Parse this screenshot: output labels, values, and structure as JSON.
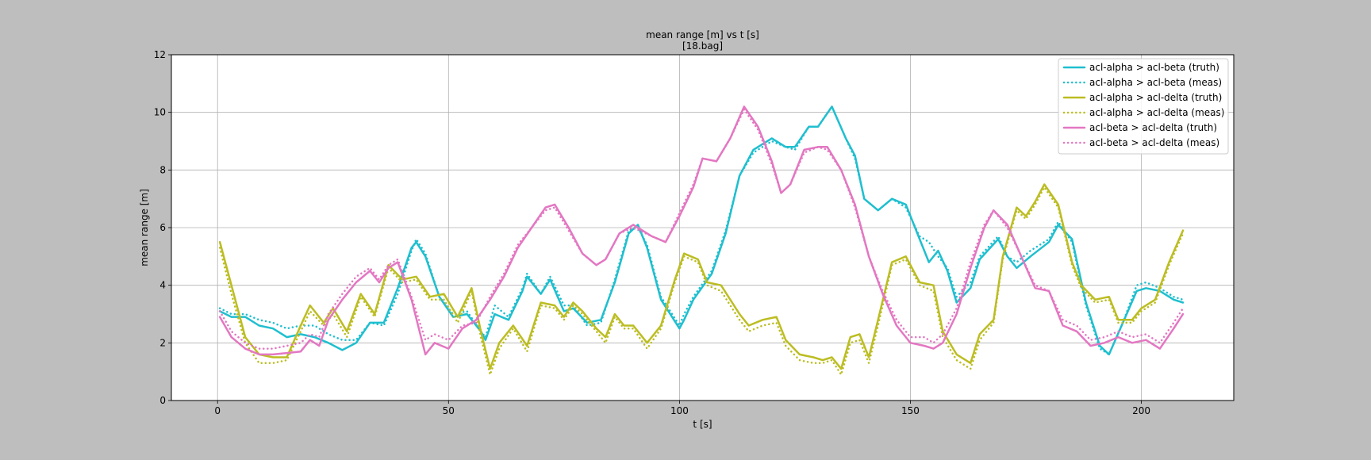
{
  "chart_data": {
    "type": "line",
    "title": "mean range [m] vs t [s]",
    "subtitle": "[18.bag]",
    "xlabel": "t [s]",
    "ylabel": "mean range [m]",
    "xlim": [
      -10,
      220
    ],
    "ylim": [
      0,
      12
    ],
    "xticks": [
      0,
      50,
      100,
      150,
      200
    ],
    "yticks": [
      0,
      2,
      4,
      6,
      8,
      10,
      12
    ],
    "grid": true,
    "legend_position": "top-right",
    "series": [
      {
        "name": "acl-alpha > acl-beta (truth)",
        "color": "#1fbfcf",
        "style": "solid",
        "x": [
          0.5,
          3,
          6,
          9,
          12,
          15,
          18,
          21,
          24,
          27,
          30,
          33,
          36,
          39,
          42,
          43,
          45,
          48,
          51,
          54,
          57,
          58,
          60,
          63,
          66,
          67,
          70,
          72,
          75,
          77,
          80,
          83,
          86,
          89,
          91,
          93,
          96,
          100,
          101,
          103,
          107,
          110,
          113,
          116,
          120,
          123,
          125,
          128,
          130,
          133,
          136,
          138,
          140,
          143,
          146,
          149,
          152,
          154,
          156,
          158,
          160,
          163,
          165,
          169,
          171,
          173,
          176,
          180,
          182,
          185,
          188,
          191,
          193,
          196,
          199,
          201,
          204,
          207,
          209
        ],
        "y": [
          3.1,
          2.9,
          2.9,
          2.6,
          2.5,
          2.2,
          2.3,
          2.2,
          2.0,
          1.75,
          2.0,
          2.7,
          2.7,
          3.9,
          5.3,
          5.5,
          5.0,
          3.6,
          2.9,
          3.0,
          2.4,
          2.1,
          3.0,
          2.8,
          3.8,
          4.3,
          3.7,
          4.2,
          3.1,
          3.2,
          2.7,
          2.8,
          4.1,
          5.8,
          6.1,
          5.3,
          3.5,
          2.5,
          2.8,
          3.5,
          4.4,
          5.8,
          7.8,
          8.7,
          9.1,
          8.8,
          8.8,
          9.5,
          9.5,
          10.2,
          9.1,
          8.5,
          7.0,
          6.6,
          7.0,
          6.8,
          5.6,
          4.8,
          5.2,
          4.5,
          3.4,
          3.9,
          4.9,
          5.6,
          5.0,
          4.6,
          5.0,
          5.5,
          6.1,
          5.6,
          3.4,
          1.9,
          1.6,
          2.7,
          3.8,
          3.9,
          3.8,
          3.5,
          3.4
        ]
      },
      {
        "name": "acl-alpha > acl-beta (meas)",
        "color": "#1fbfcf",
        "style": "dotted",
        "x": [
          0.5,
          3,
          6,
          9,
          12,
          15,
          18,
          21,
          24,
          27,
          30,
          33,
          36,
          39,
          42,
          43,
          45,
          48,
          51,
          54,
          57,
          58,
          60,
          63,
          66,
          67,
          70,
          72,
          75,
          77,
          80,
          83,
          86,
          89,
          91,
          93,
          96,
          100,
          101,
          103,
          107,
          110,
          113,
          116,
          120,
          123,
          125,
          128,
          130,
          133,
          136,
          138,
          140,
          143,
          146,
          149,
          152,
          154,
          156,
          158,
          160,
          163,
          165,
          169,
          171,
          173,
          176,
          180,
          182,
          185,
          188,
          191,
          193,
          196,
          199,
          201,
          204,
          207,
          209
        ],
        "y": [
          3.2,
          3.0,
          3.0,
          2.8,
          2.7,
          2.5,
          2.6,
          2.6,
          2.3,
          2.1,
          2.1,
          2.7,
          2.6,
          3.7,
          5.2,
          5.6,
          5.1,
          3.6,
          3.0,
          3.1,
          2.4,
          2.2,
          3.3,
          2.9,
          3.9,
          4.4,
          3.7,
          4.3,
          3.3,
          3.3,
          2.6,
          2.7,
          4.2,
          5.9,
          6.0,
          5.4,
          3.6,
          2.6,
          3.0,
          3.6,
          4.5,
          5.9,
          7.8,
          8.6,
          9.0,
          8.8,
          8.7,
          9.5,
          9.5,
          10.2,
          9.1,
          8.4,
          7.0,
          6.6,
          7.0,
          6.7,
          5.7,
          5.5,
          5.0,
          4.6,
          3.6,
          4.1,
          5.0,
          5.7,
          5.0,
          4.8,
          5.2,
          5.6,
          6.2,
          5.5,
          3.3,
          1.8,
          1.6,
          2.7,
          4.0,
          4.1,
          3.9,
          3.6,
          3.5
        ]
      },
      {
        "name": "acl-alpha > acl-delta (truth)",
        "color": "#bcbd22",
        "style": "solid",
        "x": [
          0.5,
          3,
          6,
          9,
          12,
          15,
          18,
          20,
          23,
          25,
          28,
          31,
          34,
          37,
          40,
          43,
          46,
          49,
          52,
          55,
          57,
          59,
          61,
          64,
          67,
          70,
          73,
          75,
          77,
          79,
          82,
          84,
          86,
          88,
          90,
          93,
          96,
          99,
          101,
          104,
          106,
          109,
          113,
          115,
          118,
          121,
          123,
          126,
          129,
          131,
          133,
          135,
          137,
          139,
          141,
          143,
          146,
          149,
          152,
          155,
          157,
          160,
          163,
          165,
          168,
          170,
          173,
          175,
          177,
          179,
          182,
          185,
          187,
          190,
          193,
          195,
          198,
          200,
          203,
          206,
          209
        ],
        "y": [
          5.5,
          4.0,
          2.2,
          1.6,
          1.5,
          1.5,
          2.6,
          3.3,
          2.7,
          3.2,
          2.4,
          3.7,
          3.0,
          4.7,
          4.2,
          4.3,
          3.6,
          3.7,
          2.9,
          3.9,
          2.4,
          1.1,
          2.0,
          2.6,
          1.9,
          3.4,
          3.3,
          2.9,
          3.4,
          3.1,
          2.5,
          2.2,
          3.0,
          2.6,
          2.6,
          2.0,
          2.6,
          4.2,
          5.1,
          4.9,
          4.1,
          4.0,
          3.0,
          2.6,
          2.8,
          2.9,
          2.1,
          1.6,
          1.5,
          1.4,
          1.5,
          1.1,
          2.2,
          2.3,
          1.5,
          2.8,
          4.8,
          5.0,
          4.1,
          4.0,
          2.4,
          1.6,
          1.3,
          2.3,
          2.8,
          5.0,
          6.7,
          6.4,
          6.9,
          7.5,
          6.8,
          4.8,
          4.0,
          3.5,
          3.6,
          2.8,
          2.8,
          3.2,
          3.5,
          4.8,
          5.9
        ]
      },
      {
        "name": "acl-alpha > acl-delta (meas)",
        "color": "#bcbd22",
        "style": "dotted",
        "x": [
          0.5,
          3,
          6,
          9,
          12,
          15,
          18,
          20,
          23,
          25,
          28,
          31,
          34,
          37,
          40,
          43,
          46,
          49,
          52,
          55,
          57,
          59,
          61,
          64,
          67,
          70,
          73,
          75,
          77,
          79,
          82,
          84,
          86,
          88,
          90,
          93,
          96,
          99,
          101,
          104,
          106,
          109,
          113,
          115,
          118,
          121,
          123,
          126,
          129,
          131,
          133,
          135,
          137,
          139,
          141,
          143,
          146,
          149,
          152,
          155,
          157,
          160,
          163,
          165,
          168,
          170,
          173,
          175,
          177,
          179,
          182,
          185,
          187,
          190,
          193,
          195,
          198,
          200,
          203,
          206,
          209
        ],
        "y": [
          5.3,
          3.7,
          2.0,
          1.3,
          1.3,
          1.4,
          2.4,
          3.1,
          2.6,
          3.0,
          2.2,
          3.6,
          2.9,
          4.6,
          4.1,
          4.2,
          3.5,
          3.5,
          2.7,
          3.8,
          2.2,
          0.9,
          1.8,
          2.5,
          1.7,
          3.3,
          3.2,
          2.8,
          3.3,
          3.0,
          2.4,
          2.0,
          2.9,
          2.5,
          2.5,
          1.8,
          2.5,
          4.1,
          5.0,
          4.8,
          4.0,
          3.8,
          2.8,
          2.4,
          2.6,
          2.7,
          1.9,
          1.4,
          1.3,
          1.3,
          1.4,
          0.9,
          2.0,
          2.1,
          1.3,
          2.6,
          4.7,
          4.9,
          4.0,
          3.8,
          2.2,
          1.4,
          1.1,
          2.1,
          2.7,
          4.9,
          6.6,
          6.3,
          6.8,
          7.4,
          6.7,
          4.7,
          3.9,
          3.4,
          3.5,
          2.7,
          2.7,
          3.1,
          3.4,
          4.7,
          5.8
        ]
      },
      {
        "name": "acl-beta > acl-delta (truth)",
        "color": "#e377c2",
        "style": "solid",
        "x": [
          0.5,
          3,
          6,
          9,
          12,
          15,
          18,
          20,
          22,
          24,
          27,
          30,
          33,
          35,
          37,
          39,
          42,
          45,
          47,
          50,
          53,
          56,
          59,
          62,
          65,
          68,
          71,
          73,
          76,
          79,
          82,
          84,
          87,
          90,
          94,
          97,
          100,
          103,
          105,
          108,
          111,
          114,
          117,
          120,
          122,
          124,
          127,
          130,
          132,
          135,
          138,
          141,
          144,
          147,
          150,
          153,
          155,
          157,
          160,
          163,
          166,
          168,
          171,
          174,
          177,
          180,
          183,
          186,
          189,
          192,
          195,
          198,
          201,
          204,
          207,
          209
        ],
        "y": [
          2.9,
          2.2,
          1.8,
          1.6,
          1.6,
          1.65,
          1.7,
          2.1,
          1.9,
          2.8,
          3.5,
          4.1,
          4.5,
          4.1,
          4.6,
          4.8,
          3.5,
          1.6,
          2.0,
          1.8,
          2.5,
          2.8,
          3.5,
          4.3,
          5.3,
          6.0,
          6.7,
          6.8,
          6.0,
          5.1,
          4.7,
          4.9,
          5.8,
          6.1,
          5.7,
          5.5,
          6.4,
          7.4,
          8.4,
          8.3,
          9.1,
          10.2,
          9.5,
          8.3,
          7.2,
          7.5,
          8.7,
          8.8,
          8.8,
          8.0,
          6.8,
          5.0,
          3.7,
          2.6,
          2.0,
          1.9,
          1.8,
          2.0,
          3.0,
          4.6,
          6.0,
          6.6,
          6.1,
          5.0,
          3.9,
          3.8,
          2.6,
          2.4,
          1.9,
          2.0,
          2.2,
          2.0,
          2.1,
          1.8,
          2.5,
          3.0
        ]
      },
      {
        "name": "acl-beta > acl-delta (meas)",
        "color": "#e377c2",
        "style": "dotted",
        "x": [
          0.5,
          3,
          6,
          9,
          12,
          15,
          18,
          20,
          22,
          24,
          27,
          30,
          33,
          35,
          37,
          39,
          42,
          45,
          47,
          50,
          53,
          56,
          59,
          62,
          65,
          68,
          71,
          73,
          76,
          79,
          82,
          84,
          87,
          90,
          94,
          97,
          100,
          103,
          105,
          108,
          111,
          114,
          117,
          120,
          122,
          124,
          127,
          130,
          132,
          135,
          138,
          141,
          144,
          147,
          150,
          153,
          155,
          157,
          160,
          163,
          166,
          168,
          171,
          174,
          177,
          180,
          183,
          186,
          189,
          192,
          195,
          198,
          201,
          204,
          207,
          209
        ],
        "y": [
          3.1,
          2.4,
          2.0,
          1.8,
          1.8,
          1.9,
          2.0,
          2.3,
          2.2,
          3.0,
          3.7,
          4.3,
          4.6,
          4.2,
          4.7,
          4.9,
          3.6,
          2.1,
          2.3,
          2.1,
          2.6,
          2.7,
          3.6,
          4.4,
          5.4,
          6.0,
          6.6,
          6.7,
          5.9,
          5.1,
          4.7,
          4.9,
          5.8,
          6.0,
          5.7,
          5.5,
          6.5,
          7.5,
          8.4,
          8.3,
          9.1,
          10.1,
          9.4,
          8.2,
          7.2,
          7.5,
          8.6,
          8.8,
          8.7,
          8.0,
          6.7,
          5.0,
          3.8,
          2.8,
          2.2,
          2.2,
          2.0,
          2.3,
          3.2,
          4.8,
          6.1,
          6.6,
          6.0,
          5.0,
          4.0,
          3.8,
          2.8,
          2.6,
          2.1,
          2.2,
          2.4,
          2.2,
          2.3,
          2.0,
          2.7,
          3.2
        ]
      }
    ]
  }
}
